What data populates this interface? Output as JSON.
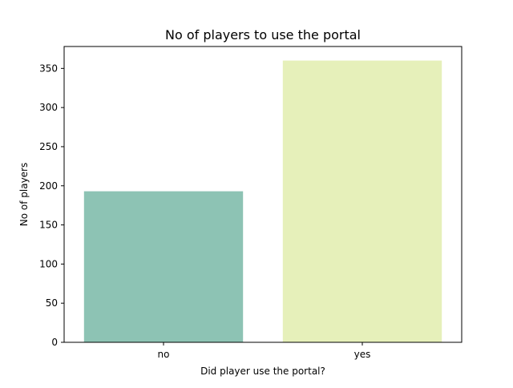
{
  "chart_data": {
    "type": "bar",
    "title": "No of players to use the portal",
    "xlabel": "Did player use the portal?",
    "ylabel": "No of players",
    "categories": [
      "no",
      "yes"
    ],
    "values": [
      193,
      360
    ],
    "ylim": [
      0,
      378
    ],
    "yticks": [
      0,
      50,
      100,
      150,
      200,
      250,
      300,
      350
    ],
    "colors": [
      "#8dc3b4",
      "#e6f0ba"
    ],
    "grid": false,
    "legend": "none"
  }
}
